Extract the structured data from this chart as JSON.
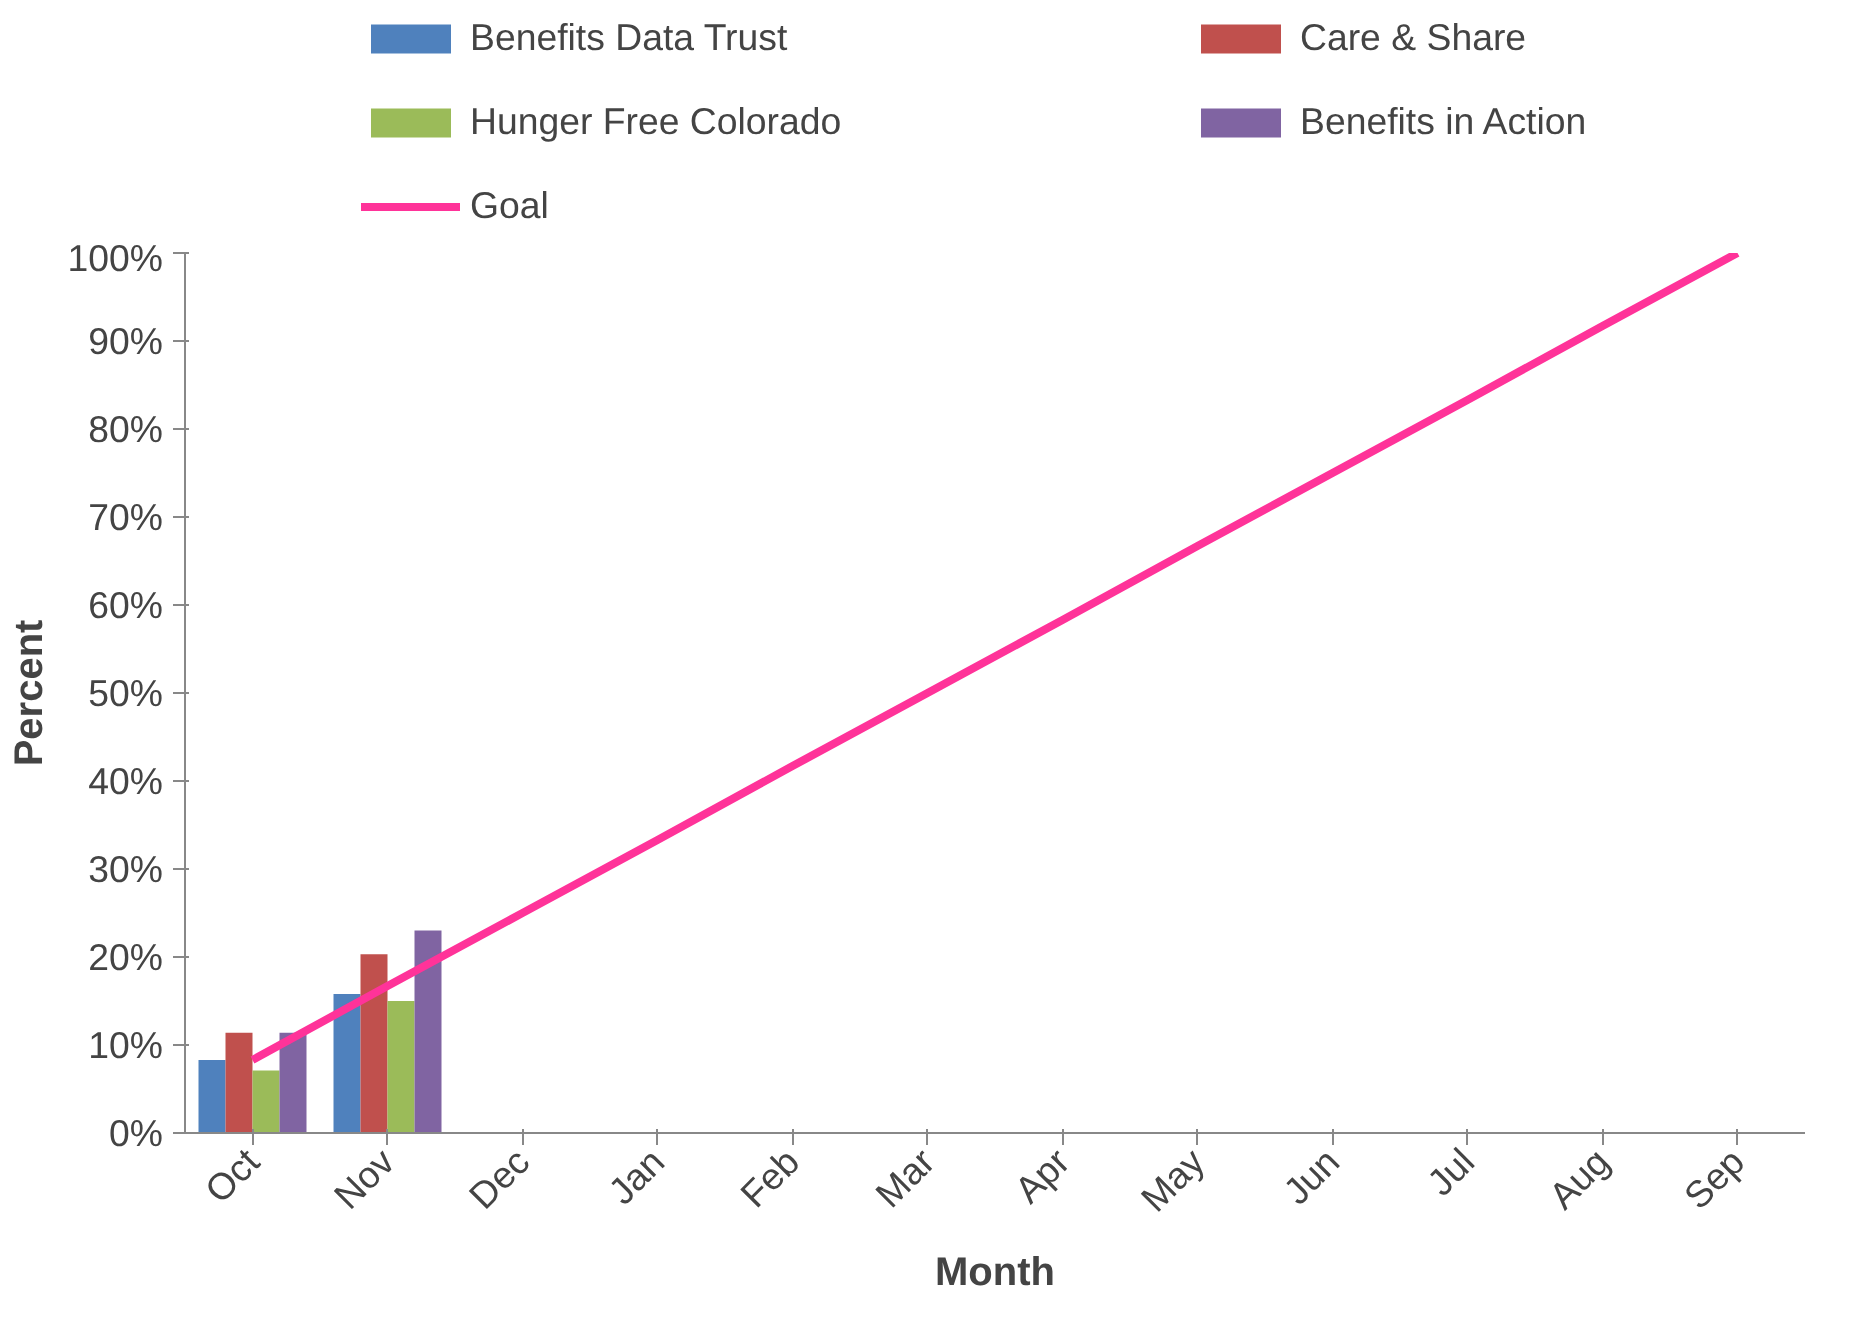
{
  "chart_data": {
    "type": "bar",
    "xlabel": "Month",
    "ylabel": "Percent",
    "categories": [
      "Oct",
      "Nov",
      "Dec",
      "Jan",
      "Feb",
      "Mar",
      "Apr",
      "May",
      "Jun",
      "Jul",
      "Aug",
      "Sep"
    ],
    "series": [
      {
        "name": "Benefits Data Trust",
        "color": "#4f81bd",
        "values": [
          8.3,
          15.8,
          null,
          null,
          null,
          null,
          null,
          null,
          null,
          null,
          null,
          null
        ]
      },
      {
        "name": "Care & Share",
        "color": "#c0504d",
        "values": [
          11.4,
          20.3,
          null,
          null,
          null,
          null,
          null,
          null,
          null,
          null,
          null,
          null
        ]
      },
      {
        "name": "Hunger Free Colorado",
        "color": "#9bbb59",
        "values": [
          7.1,
          15.0,
          null,
          null,
          null,
          null,
          null,
          null,
          null,
          null,
          null,
          null
        ]
      },
      {
        "name": "Benefits in Action",
        "color": "#8064a2",
        "values": [
          11.4,
          23.0,
          null,
          null,
          null,
          null,
          null,
          null,
          null,
          null,
          null,
          null
        ]
      },
      {
        "name": "Goal",
        "type": "line",
        "color": "#ff3399",
        "values": [
          8.3,
          16.7,
          25.0,
          33.3,
          41.7,
          50.0,
          58.3,
          66.7,
          75.0,
          83.3,
          91.7,
          100.0
        ]
      }
    ],
    "ylim": [
      0,
      100
    ],
    "yticks": [
      {
        "value": 0,
        "label": "0%"
      },
      {
        "value": 10,
        "label": "10%"
      },
      {
        "value": 20,
        "label": "20%"
      },
      {
        "value": 30,
        "label": "30%"
      },
      {
        "value": 40,
        "label": "40%"
      },
      {
        "value": 50,
        "label": "50%"
      },
      {
        "value": 60,
        "label": "60%"
      },
      {
        "value": 70,
        "label": "70%"
      },
      {
        "value": 80,
        "label": "80%"
      },
      {
        "value": 90,
        "label": "90%"
      },
      {
        "value": 100,
        "label": "100%"
      }
    ],
    "grid": false,
    "legend": "top",
    "marker": "none",
    "line_style": "solid"
  }
}
